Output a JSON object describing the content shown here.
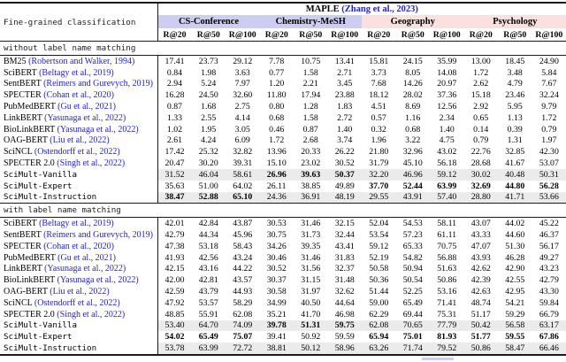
{
  "paper_table": {
    "corner_label": "Fine-grained classification",
    "dataset_header": {
      "name": "MAPLE",
      "citation": "(Zhang et al., 2023)"
    },
    "metrics": [
      "R@20",
      "R@50",
      "R@100"
    ],
    "groups": [
      {
        "label": "CS-Conference",
        "color": "#cdcdf2"
      },
      {
        "label": "Chemistry-MeSH",
        "color": "#cdcdf2"
      },
      {
        "label": "Geography",
        "color": "#fbe0dd"
      },
      {
        "label": "Psychology",
        "color": "#fbe0dd"
      }
    ],
    "colors": {
      "citation_blue": "#2323cf",
      "shade_gray": "#ebebeb",
      "rule_black": "#1a1a1a"
    },
    "sections": [
      {
        "title": "without label name matching",
        "rows": [
          {
            "model": "BM25",
            "citation": "(Robertson and Walker, 1994)",
            "mono": false,
            "shaded": false,
            "bold": [],
            "values": [
              "17.41",
              "23.73",
              "29.12",
              "7.78",
              "10.75",
              "13.41",
              "15.81",
              "24.15",
              "35.99",
              "13.00",
              "18.45",
              "24.90"
            ]
          },
          {
            "model": "SciBERT",
            "citation": "(Beltagy et al., 2019)",
            "mono": false,
            "shaded": false,
            "bold": [],
            "values": [
              "0.84",
              "1.98",
              "3.63",
              "0.77",
              "1.58",
              "2.71",
              "3.73",
              "8.05",
              "14.08",
              "1.72",
              "3.48",
              "5.84"
            ]
          },
          {
            "model": "SentBERT",
            "citation": "(Reimers and Gurevych, 2019)",
            "mono": false,
            "shaded": false,
            "bold": [],
            "values": [
              "2.94",
              "5.24",
              "7.97",
              "1.20",
              "2.21",
              "3.45",
              "7.68",
              "14.26",
              "20.97",
              "2.62",
              "4.79",
              "7.67"
            ]
          },
          {
            "model": "SPECTER",
            "citation": "(Cohan et al., 2020)",
            "mono": false,
            "shaded": false,
            "bold": [],
            "values": [
              "16.28",
              "24.50",
              "32.60",
              "11.80",
              "17.94",
              "23.88",
              "18.12",
              "28.02",
              "37.36",
              "15.18",
              "23.46",
              "32.24"
            ]
          },
          {
            "model": "PubMedBERT",
            "citation": "(Gu et al., 2021)",
            "mono": false,
            "shaded": false,
            "bold": [],
            "values": [
              "0.87",
              "1.68",
              "2.75",
              "0.80",
              "1.28",
              "1.83",
              "4.51",
              "8.69",
              "12.56",
              "2.92",
              "5.95",
              "9.79"
            ]
          },
          {
            "model": "LinkBERT",
            "citation": "(Yasunaga et al., 2022)",
            "mono": false,
            "shaded": false,
            "bold": [],
            "values": [
              "1.33",
              "2.55",
              "4.14",
              "0.68",
              "1.58",
              "2.72",
              "0.57",
              "1.16",
              "2.34",
              "0.65",
              "1.13",
              "1.72"
            ]
          },
          {
            "model": "BioLinkBERT",
            "citation": "(Yasunaga et al., 2022)",
            "mono": false,
            "shaded": false,
            "bold": [],
            "values": [
              "1.02",
              "1.95",
              "3.05",
              "0.46",
              "0.87",
              "1.40",
              "0.32",
              "0.68",
              "1.40",
              "0.14",
              "0.39",
              "0.79"
            ]
          },
          {
            "model": "OAG-BERT",
            "citation": "(Liu et al., 2022)",
            "mono": false,
            "shaded": false,
            "bold": [],
            "values": [
              "2.61",
              "4.24",
              "6.09",
              "1.72",
              "2.68",
              "3.74",
              "1.96",
              "3.22",
              "4.75",
              "0.79",
              "1.31",
              "1.97"
            ]
          },
          {
            "model": "SciNCL",
            "citation": "(Ostendorff et al., 2022)",
            "mono": false,
            "shaded": false,
            "bold": [],
            "values": [
              "17.42",
              "25.32",
              "32.82",
              "13.96",
              "20.33",
              "26.22",
              "21.80",
              "32.96",
              "43.02",
              "22.76",
              "32.85",
              "42.30"
            ]
          },
          {
            "model": "SPECTER 2.0",
            "citation": "(Singh et al., 2022)",
            "mono": false,
            "shaded": false,
            "bold": [],
            "values": [
              "20.47",
              "30.20",
              "39.31",
              "15.10",
              "23.02",
              "30.52",
              "31.79",
              "45.10",
              "56.18",
              "28.68",
              "41.67",
              "53.07"
            ]
          },
          {
            "model": "SciMult-Vanilla",
            "citation": "",
            "mono": true,
            "shaded": true,
            "bold": [
              3,
              4,
              5
            ],
            "values": [
              "31.52",
              "46.04",
              "58.61",
              "26.96",
              "39.63",
              "50.37",
              "32.20",
              "46.96",
              "59.12",
              "30.02",
              "40.48",
              "50.31"
            ]
          },
          {
            "model": "SciMult-Expert",
            "citation": "",
            "mono": true,
            "shaded": false,
            "bold": [
              6,
              7,
              8,
              9,
              10,
              11
            ],
            "values": [
              "35.63",
              "51.00",
              "64.02",
              "26.11",
              "38.85",
              "49.89",
              "37.70",
              "52.44",
              "63.99",
              "32.69",
              "44.80",
              "56.28"
            ]
          },
          {
            "model": "SciMult-Instruction",
            "citation": "",
            "mono": true,
            "shaded": true,
            "bold": [
              0,
              1,
              2
            ],
            "values": [
              "38.47",
              "52.88",
              "65.10",
              "24.36",
              "36.91",
              "48.19",
              "29.55",
              "43.91",
              "57.40",
              "28.80",
              "41.71",
              "53.66"
            ]
          }
        ]
      },
      {
        "title": "with label name matching",
        "rows": [
          {
            "model": "SciBERT",
            "citation": "(Beltagy et al., 2019)",
            "mono": false,
            "shaded": false,
            "bold": [],
            "values": [
              "42.01",
              "42.84",
              "43.87",
              "30.53",
              "31.46",
              "32.15",
              "52.04",
              "54.53",
              "58.11",
              "43.07",
              "44.02",
              "45.22"
            ]
          },
          {
            "model": "SentBERT",
            "citation": "(Reimers and Gurevych, 2019)",
            "mono": false,
            "shaded": false,
            "bold": [],
            "values": [
              "42.79",
              "44.34",
              "45.96",
              "30.75",
              "31.73",
              "32.44",
              "53.54",
              "57.23",
              "61.11",
              "43.33",
              "44.60",
              "46.37"
            ]
          },
          {
            "model": "SPECTER",
            "citation": "(Cohan et al., 2020)",
            "mono": false,
            "shaded": false,
            "bold": [],
            "values": [
              "47.38",
              "53.18",
              "58.43",
              "34.26",
              "39.35",
              "43.41",
              "59.12",
              "65.33",
              "70.75",
              "47.07",
              "51.30",
              "56.17"
            ]
          },
          {
            "model": "PubMedBERT",
            "citation": "(Gu et al., 2021)",
            "mono": false,
            "shaded": false,
            "bold": [],
            "values": [
              "41.93",
              "42.56",
              "43.24",
              "30.46",
              "31.46",
              "31.83",
              "52.19",
              "54.82",
              "56.88",
              "43.93",
              "46.28",
              "49.27"
            ]
          },
          {
            "model": "LinkBERT",
            "citation": "(Yasunaga et al., 2022)",
            "mono": false,
            "shaded": false,
            "bold": [],
            "values": [
              "42.15",
              "43.16",
              "44.22",
              "30.52",
              "31.56",
              "32.37",
              "50.58",
              "50.94",
              "51.63",
              "42.62",
              "42.90",
              "43.23"
            ]
          },
          {
            "model": "BioLinkBERT",
            "citation": "(Yasunaga et al., 2022)",
            "mono": false,
            "shaded": false,
            "bold": [],
            "values": [
              "42.00",
              "42.81",
              "43.57",
              "30.37",
              "31.15",
              "31.48",
              "50.36",
              "50.54",
              "50.86",
              "42.39",
              "42.55",
              "42.79"
            ]
          },
          {
            "model": "OAG-BERT",
            "citation": "(Liu et al., 2022)",
            "mono": false,
            "shaded": false,
            "bold": [],
            "values": [
              "42.59",
              "43.79",
              "44.93",
              "30.58",
              "31.97",
              "32.62",
              "51.44",
              "52.25",
              "53.16",
              "42.63",
              "42.95",
              "43.30"
            ]
          },
          {
            "model": "SciNCL",
            "citation": "(Ostendorff et al., 2022)",
            "mono": false,
            "shaded": false,
            "bold": [],
            "values": [
              "47.92",
              "53.57",
              "58.29",
              "34.99",
              "40.50",
              "44.64",
              "59.00",
              "65.49",
              "71.41",
              "48.74",
              "54.21",
              "59.84"
            ]
          },
          {
            "model": "SPECTER 2.0",
            "citation": "(Singh et al., 2022)",
            "mono": false,
            "shaded": false,
            "bold": [],
            "values": [
              "48.85",
              "55.91",
              "62.08",
              "35.21",
              "41.70",
              "46.98",
              "62.29",
              "69.44",
              "75.31",
              "51.17",
              "59.29",
              "66.79"
            ]
          },
          {
            "model": "SciMult-Vanilla",
            "citation": "",
            "mono": true,
            "shaded": true,
            "bold": [
              3,
              4,
              5
            ],
            "values": [
              "53.40",
              "64.70",
              "74.09",
              "39.78",
              "51.31",
              "59.75",
              "62.08",
              "70.65",
              "77.79",
              "50.42",
              "56.58",
              "63.17"
            ]
          },
          {
            "model": "SciMult-Expert",
            "citation": "",
            "mono": true,
            "shaded": false,
            "bold": [
              0,
              1,
              2,
              6,
              7,
              8,
              9,
              10,
              11
            ],
            "values": [
              "54.02",
              "65.49",
              "75.07",
              "39.41",
              "50.92",
              "59.59",
              "65.94",
              "75.01",
              "81.93",
              "51.77",
              "59.55",
              "67.86"
            ]
          },
          {
            "model": "SciMult-Instruction",
            "citation": "",
            "mono": true,
            "shaded": true,
            "bold": [],
            "values": [
              "53.78",
              "63.99",
              "72.72",
              "38.81",
              "50.12",
              "58.96",
              "63.26",
              "71.74",
              "79.52",
              "50.86",
              "58.47",
              "66.46"
            ]
          }
        ]
      }
    ]
  }
}
